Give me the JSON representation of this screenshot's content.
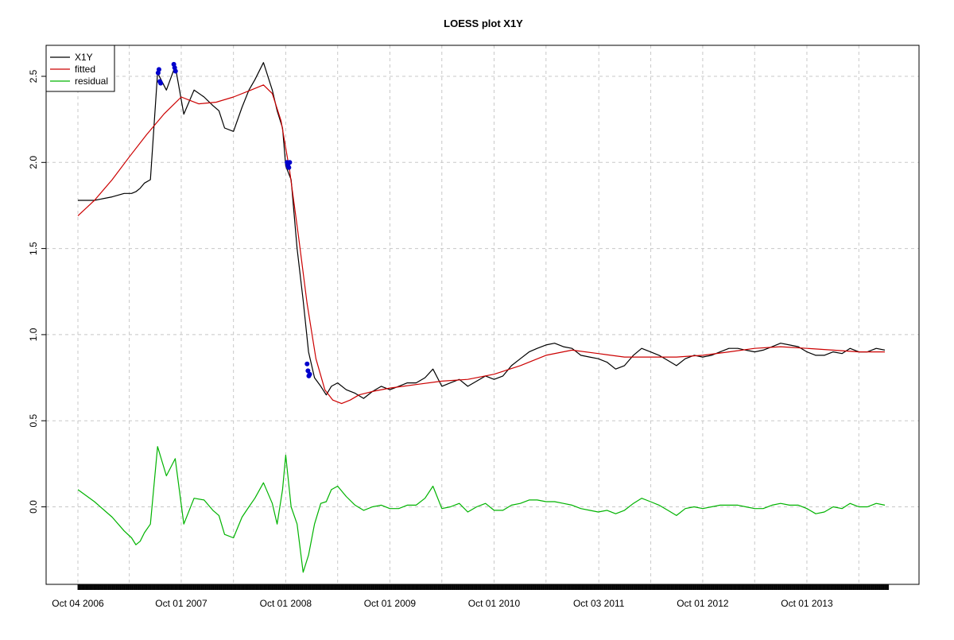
{
  "chart_data": {
    "type": "line",
    "title": "LOESS plot X1Y",
    "xlabel": "",
    "ylabel": "",
    "grid": true,
    "legend_position": "top-left",
    "ylim": [
      -0.45,
      2.68
    ],
    "xlim": [
      "2006-10-04",
      "2014-07-15"
    ],
    "y_ticks": [
      0.0,
      0.5,
      1.0,
      1.5,
      2.0,
      2.5
    ],
    "y_tick_labels": [
      "0.0",
      "0.5",
      "1.0",
      "1.5",
      "2.0",
      "2.5"
    ],
    "x_ticks": [
      "2006-10-04",
      "2007-10-01",
      "2008-10-01",
      "2009-10-01",
      "2010-10-01",
      "2011-10-03",
      "2012-10-01",
      "2013-10-01"
    ],
    "x_tick_labels": [
      "Oct 04 2006",
      "Oct 01 2007",
      "Oct 01 2008",
      "Oct 01 2009",
      "Oct 01 2010",
      "Oct 03 2011",
      "Oct 01 2012",
      "Oct 01 2013"
    ],
    "x_grid": [
      "2006-10-04",
      "2007-04-02",
      "2007-10-01",
      "2008-04-01",
      "2008-10-01",
      "2009-04-01",
      "2009-10-01",
      "2010-04-01",
      "2010-10-01",
      "2011-04-01",
      "2011-10-03",
      "2012-04-02",
      "2012-10-01",
      "2013-04-01",
      "2013-10-01",
      "2014-04-01"
    ],
    "series": [
      {
        "name": "X1Y",
        "color": "#000000",
        "x": [
          "2006-10-04",
          "2006-12-01",
          "2007-02-01",
          "2007-03-15",
          "2007-04-10",
          "2007-04-25",
          "2007-05-10",
          "2007-05-25",
          "2007-06-15",
          "2007-07-10",
          "2007-08-10",
          "2007-09-10",
          "2007-10-10",
          "2007-11-15",
          "2007-12-20",
          "2008-01-20",
          "2008-02-10",
          "2008-03-01",
          "2008-04-01",
          "2008-05-01",
          "2008-05-25",
          "2008-06-15",
          "2008-07-15",
          "2008-08-15",
          "2008-09-01",
          "2008-09-20",
          "2008-10-01",
          "2008-10-20",
          "2008-11-10",
          "2008-12-01",
          "2008-12-20",
          "2009-01-10",
          "2009-02-01",
          "2009-02-20",
          "2009-03-10",
          "2009-04-01",
          "2009-05-01",
          "2009-06-01",
          "2009-07-01",
          "2009-08-01",
          "2009-09-01",
          "2009-10-01",
          "2009-11-01",
          "2009-12-01",
          "2010-01-01",
          "2010-02-01",
          "2010-03-01",
          "2010-04-01",
          "2010-05-01",
          "2010-06-01",
          "2010-07-01",
          "2010-08-01",
          "2010-09-01",
          "2010-10-01",
          "2010-11-01",
          "2010-12-01",
          "2011-01-01",
          "2011-02-01",
          "2011-03-01",
          "2011-04-01",
          "2011-05-01",
          "2011-06-01",
          "2011-07-01",
          "2011-08-01",
          "2011-09-01",
          "2011-10-01",
          "2011-11-01",
          "2011-12-01",
          "2012-01-01",
          "2012-02-01",
          "2012-03-01",
          "2012-04-01",
          "2012-05-01",
          "2012-06-01",
          "2012-07-01",
          "2012-08-01",
          "2012-09-01",
          "2012-10-01",
          "2012-11-01",
          "2012-12-01",
          "2013-01-01",
          "2013-02-01",
          "2013-03-01",
          "2013-04-01",
          "2013-05-01",
          "2013-06-01",
          "2013-07-01",
          "2013-08-01",
          "2013-09-01",
          "2013-10-01",
          "2013-11-01",
          "2013-12-01",
          "2014-01-01",
          "2014-02-01",
          "2014-03-01",
          "2014-04-01",
          "2014-05-01",
          "2014-06-01",
          "2014-07-01"
        ],
        "y": [
          1.78,
          1.78,
          1.8,
          1.82,
          1.82,
          1.83,
          1.85,
          1.88,
          1.9,
          2.52,
          2.42,
          2.56,
          2.28,
          2.42,
          2.38,
          2.33,
          2.3,
          2.2,
          2.18,
          2.32,
          2.42,
          2.48,
          2.58,
          2.42,
          2.3,
          2.2,
          1.98,
          1.9,
          1.5,
          1.2,
          0.9,
          0.75,
          0.7,
          0.65,
          0.7,
          0.72,
          0.68,
          0.66,
          0.63,
          0.67,
          0.7,
          0.68,
          0.7,
          0.72,
          0.72,
          0.75,
          0.8,
          0.7,
          0.72,
          0.74,
          0.7,
          0.73,
          0.76,
          0.74,
          0.76,
          0.82,
          0.86,
          0.9,
          0.92,
          0.94,
          0.95,
          0.93,
          0.92,
          0.88,
          0.87,
          0.86,
          0.84,
          0.8,
          0.82,
          0.88,
          0.92,
          0.9,
          0.88,
          0.85,
          0.82,
          0.86,
          0.88,
          0.87,
          0.88,
          0.9,
          0.92,
          0.92,
          0.91,
          0.9,
          0.91,
          0.93,
          0.95,
          0.94,
          0.93,
          0.9,
          0.88,
          0.88,
          0.9,
          0.89,
          0.92,
          0.9,
          0.9,
          0.92,
          0.91
        ]
      },
      {
        "name": "fitted",
        "color": "#cc0000",
        "x": [
          "2006-10-04",
          "2006-12-01",
          "2007-02-01",
          "2007-04-01",
          "2007-06-01",
          "2007-08-01",
          "2007-10-01",
          "2007-12-01",
          "2008-02-01",
          "2008-04-01",
          "2008-06-01",
          "2008-07-15",
          "2008-08-15",
          "2008-09-15",
          "2008-10-15",
          "2008-11-15",
          "2008-12-15",
          "2009-01-15",
          "2009-02-15",
          "2009-03-15",
          "2009-04-15",
          "2009-05-15",
          "2009-06-15",
          "2009-08-01",
          "2009-10-01",
          "2010-01-01",
          "2010-04-01",
          "2010-07-01",
          "2010-10-01",
          "2011-01-01",
          "2011-04-01",
          "2011-07-01",
          "2011-10-01",
          "2012-01-01",
          "2012-04-01",
          "2012-07-01",
          "2012-10-01",
          "2013-01-01",
          "2013-04-01",
          "2013-07-01",
          "2013-10-01",
          "2014-01-01",
          "2014-04-01",
          "2014-07-01"
        ],
        "y": [
          1.69,
          1.78,
          1.9,
          2.03,
          2.16,
          2.28,
          2.38,
          2.34,
          2.35,
          2.38,
          2.42,
          2.45,
          2.4,
          2.24,
          1.95,
          1.57,
          1.18,
          0.86,
          0.68,
          0.62,
          0.6,
          0.62,
          0.65,
          0.67,
          0.69,
          0.71,
          0.73,
          0.74,
          0.77,
          0.82,
          0.88,
          0.91,
          0.89,
          0.87,
          0.87,
          0.87,
          0.88,
          0.9,
          0.92,
          0.93,
          0.92,
          0.91,
          0.9,
          0.9
        ]
      },
      {
        "name": "residual",
        "color": "#00b300",
        "x": [
          "2006-10-04",
          "2006-12-01",
          "2007-02-01",
          "2007-03-15",
          "2007-04-10",
          "2007-04-25",
          "2007-05-10",
          "2007-05-25",
          "2007-06-15",
          "2007-07-10",
          "2007-08-10",
          "2007-09-10",
          "2007-10-10",
          "2007-11-15",
          "2007-12-20",
          "2008-01-20",
          "2008-02-10",
          "2008-03-01",
          "2008-04-01",
          "2008-05-01",
          "2008-05-25",
          "2008-06-15",
          "2008-07-15",
          "2008-08-15",
          "2008-09-01",
          "2008-09-20",
          "2008-10-01",
          "2008-10-20",
          "2008-11-10",
          "2008-12-01",
          "2008-12-20",
          "2009-01-10",
          "2009-02-01",
          "2009-02-20",
          "2009-03-10",
          "2009-04-01",
          "2009-05-01",
          "2009-06-01",
          "2009-07-01",
          "2009-08-01",
          "2009-09-01",
          "2009-10-01",
          "2009-11-01",
          "2009-12-01",
          "2010-01-01",
          "2010-02-01",
          "2010-03-01",
          "2010-04-01",
          "2010-05-01",
          "2010-06-01",
          "2010-07-01",
          "2010-08-01",
          "2010-09-01",
          "2010-10-01",
          "2010-11-01",
          "2010-12-01",
          "2011-01-01",
          "2011-02-01",
          "2011-03-01",
          "2011-04-01",
          "2011-05-01",
          "2011-06-01",
          "2011-07-01",
          "2011-08-01",
          "2011-09-01",
          "2011-10-01",
          "2011-11-01",
          "2011-12-01",
          "2012-01-01",
          "2012-02-01",
          "2012-03-01",
          "2012-04-01",
          "2012-05-01",
          "2012-06-01",
          "2012-07-01",
          "2012-08-01",
          "2012-09-01",
          "2012-10-01",
          "2012-11-01",
          "2012-12-01",
          "2013-01-01",
          "2013-02-01",
          "2013-03-01",
          "2013-04-01",
          "2013-05-01",
          "2013-06-01",
          "2013-07-01",
          "2013-08-01",
          "2013-09-01",
          "2013-10-01",
          "2013-11-01",
          "2013-12-01",
          "2014-01-01",
          "2014-02-01",
          "2014-03-01",
          "2014-04-01",
          "2014-05-01",
          "2014-06-01",
          "2014-07-01"
        ],
        "y": [
          0.1,
          0.03,
          -0.06,
          -0.14,
          -0.18,
          -0.22,
          -0.2,
          -0.15,
          -0.1,
          0.35,
          0.18,
          0.28,
          -0.1,
          0.05,
          0.04,
          -0.02,
          -0.05,
          -0.16,
          -0.18,
          -0.06,
          0.0,
          0.05,
          0.14,
          0.02,
          -0.1,
          0.1,
          0.3,
          0.0,
          -0.1,
          -0.38,
          -0.28,
          -0.1,
          0.02,
          0.03,
          0.1,
          0.12,
          0.06,
          0.01,
          -0.02,
          0.0,
          0.01,
          -0.01,
          -0.01,
          0.01,
          0.01,
          0.05,
          0.12,
          -0.01,
          0.0,
          0.02,
          -0.03,
          0.0,
          0.02,
          -0.02,
          -0.02,
          0.01,
          0.02,
          0.04,
          0.04,
          0.03,
          0.03,
          0.02,
          0.01,
          -0.01,
          -0.02,
          -0.03,
          -0.02,
          -0.04,
          -0.02,
          0.02,
          0.05,
          0.03,
          0.01,
          -0.02,
          -0.05,
          -0.01,
          0.0,
          -0.01,
          0.0,
          0.01,
          0.01,
          0.01,
          0.0,
          -0.01,
          -0.01,
          0.01,
          0.02,
          0.01,
          0.01,
          -0.01,
          -0.04,
          -0.03,
          0.0,
          -0.01,
          0.02,
          0.0,
          0.0,
          0.02,
          0.01
        ]
      }
    ],
    "highlight_points": {
      "color": "#0000cc",
      "x": [
        "2007-07-12",
        "2007-07-15",
        "2007-07-18",
        "2007-07-21",
        "2007-09-05",
        "2007-09-08",
        "2007-09-11",
        "2008-10-06",
        "2008-10-09",
        "2008-10-12",
        "2008-10-15",
        "2008-12-15",
        "2008-12-18",
        "2008-12-21",
        "2008-12-24"
      ],
      "y": [
        2.52,
        2.54,
        2.47,
        2.46,
        2.57,
        2.55,
        2.53,
        2.0,
        1.98,
        1.97,
        2.0,
        0.83,
        0.79,
        0.76,
        0.77
      ]
    }
  }
}
